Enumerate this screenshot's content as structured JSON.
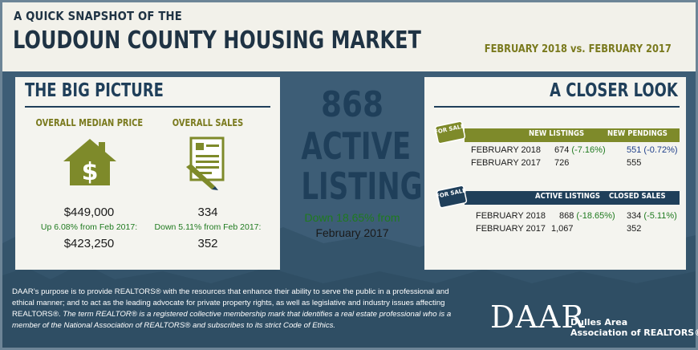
{
  "header": {
    "kicker": "A QUICK SNAPSHOT OF THE",
    "title": "LOUDOUN COUNTY HOUSING MARKET",
    "period": "FEBRUARY 2018 vs. FEBRUARY 2017"
  },
  "big_picture": {
    "title": "THE BIG PICTURE",
    "median_price": {
      "label": "OVERALL MEDIAN PRICE",
      "current": "$449,000",
      "change": "Up 6.08% from Feb 2017:",
      "previous": "$423,250",
      "icon": "house-dollar-icon"
    },
    "sales": {
      "label": "OVERALL SALES",
      "current": "334",
      "change": "Down 5.11% from Feb 2017:",
      "previous": "352",
      "icon": "contract-pen-icon"
    }
  },
  "active": {
    "number": "868",
    "word1": "ACTIVE",
    "word2": "LISTINGS",
    "change": "Down 18.65% from",
    "compare": "February 2017"
  },
  "closer_look": {
    "title": "A CLOSER LOOK",
    "table1": {
      "tag": "FOR SALE",
      "col1": "NEW LISTINGS",
      "col2": "NEW PENDINGS",
      "rows": [
        {
          "label": "FEBRUARY 2018",
          "v1": "674 (-7.16%)",
          "v2": "551 (-0.72%)"
        },
        {
          "label": "FEBRUARY 2017",
          "v1": "726",
          "v2": "555"
        }
      ]
    },
    "table2": {
      "tag": "FOR SALE",
      "col1": "ACTIVE LISTINGS",
      "col2": "CLOSED SALES",
      "rows": [
        {
          "label": "FEBRUARY 2018",
          "v1": "868 (-18.65%)",
          "v2": "334 (-5.11%)"
        },
        {
          "label": "FEBRUARY 2017",
          "v1": "1,067",
          "v2": "352"
        }
      ]
    }
  },
  "footer": {
    "line1": "DAAR’s purpose is to provide REALTORS® with the resources that enhance their ability to serve the public in a professional and ethical manner; and to act as the leading advocate for private property rights, as well as legislative and industry issues affecting REALTORS®.",
    "line2": "The term REALTOR® is a registered collective membership mark that identifies a real estate professional who is a member of the National Association of REALTORS® and subscribes to its strict Code of Ethics."
  },
  "logo": {
    "word": "DAAR",
    "name1": "Dulles Area",
    "name2": "Association of REALTORS®"
  },
  "colors": {
    "navy": "#1f3f5a",
    "olive": "#7e8a2a",
    "green": "#1f7a1f",
    "background": "#3a5a72"
  }
}
